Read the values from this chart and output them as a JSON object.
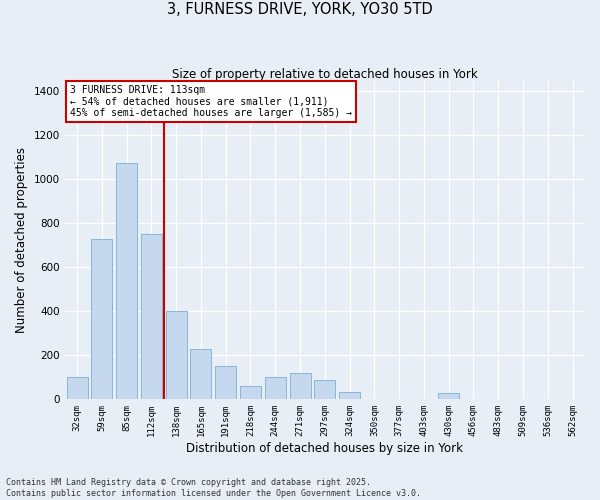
{
  "title_line1": "3, FURNESS DRIVE, YORK, YO30 5TD",
  "title_line2": "Size of property relative to detached houses in York",
  "xlabel": "Distribution of detached houses by size in York",
  "ylabel": "Number of detached properties",
  "bar_color": "#c5d8ed",
  "bar_edge_color": "#7aafd4",
  "categories": [
    "32sqm",
    "59sqm",
    "85sqm",
    "112sqm",
    "138sqm",
    "165sqm",
    "191sqm",
    "218sqm",
    "244sqm",
    "271sqm",
    "297sqm",
    "324sqm",
    "350sqm",
    "377sqm",
    "403sqm",
    "430sqm",
    "456sqm",
    "483sqm",
    "509sqm",
    "536sqm",
    "562sqm"
  ],
  "values": [
    100,
    730,
    1075,
    750,
    400,
    230,
    150,
    60,
    100,
    120,
    90,
    35,
    0,
    0,
    0,
    30,
    0,
    0,
    0,
    0,
    0
  ],
  "property_line_color": "#cc0000",
  "annotation_text": "3 FURNESS DRIVE: 113sqm\n← 54% of detached houses are smaller (1,911)\n45% of semi-detached houses are larger (1,585) →",
  "annotation_box_color": "#cc0000",
  "annotation_bg": "white",
  "ylim": [
    0,
    1450
  ],
  "yticks": [
    0,
    200,
    400,
    600,
    800,
    1000,
    1200,
    1400
  ],
  "footer_line1": "Contains HM Land Registry data © Crown copyright and database right 2025.",
  "footer_line2": "Contains public sector information licensed under the Open Government Licence v3.0.",
  "bg_color": "#e8eef5"
}
